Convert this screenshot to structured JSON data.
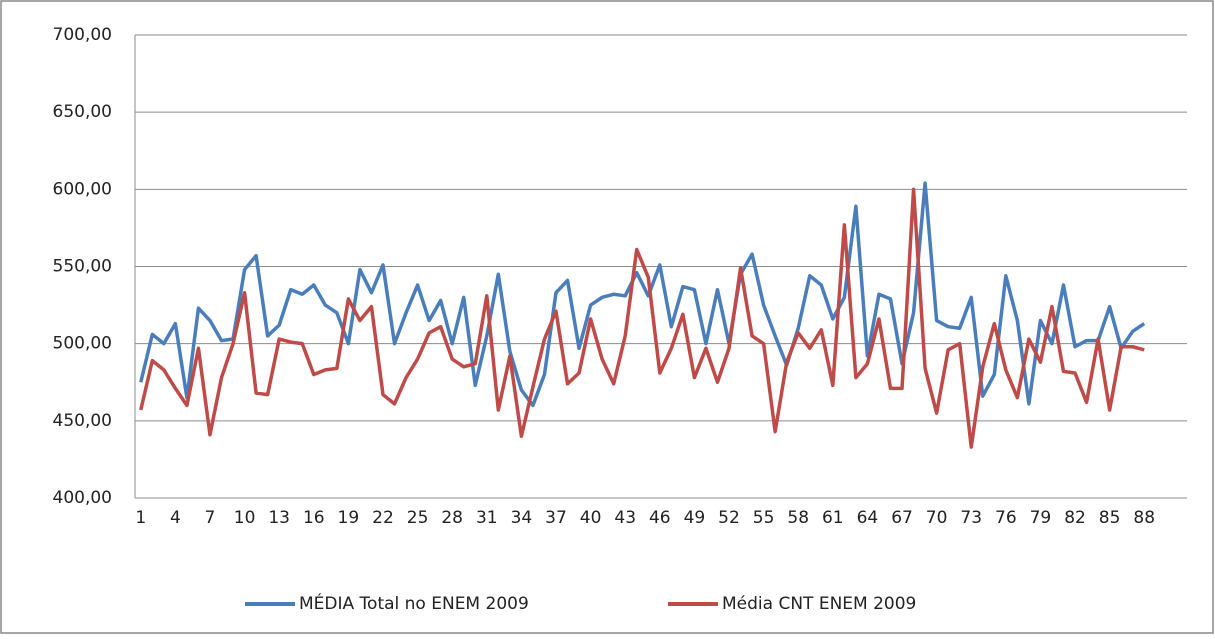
{
  "chart_data": {
    "type": "line",
    "categories": [
      1,
      null,
      null,
      4,
      null,
      null,
      7,
      null,
      null,
      10,
      null,
      null,
      13,
      null,
      null,
      16,
      null,
      null,
      19,
      null,
      null,
      22,
      null,
      null,
      25,
      null,
      null,
      28,
      null,
      null,
      31,
      null,
      null,
      34,
      null,
      null,
      37,
      null,
      null,
      40,
      null,
      null,
      43,
      null,
      null,
      46,
      null,
      null,
      49,
      null,
      null,
      52,
      null,
      null,
      55,
      null,
      null,
      58,
      null,
      null,
      61,
      null,
      null,
      64,
      null,
      null,
      67,
      null,
      null,
      70,
      null,
      null,
      73,
      null,
      null,
      76,
      null,
      null,
      79,
      null,
      null,
      82,
      null,
      null,
      85,
      null,
      null,
      88
    ],
    "series": [
      {
        "name": "MÉDIA Total no ENEM 2009",
        "color": "#4a7ebb",
        "values": [
          475,
          506,
          500,
          513,
          465,
          523,
          515,
          502,
          503,
          548,
          557,
          505,
          512,
          535,
          532,
          538,
          525,
          520,
          500,
          548,
          533,
          551,
          500,
          520,
          538,
          515,
          528,
          500,
          530,
          473,
          505,
          545,
          495,
          470,
          460,
          480,
          533,
          541,
          497,
          525,
          530,
          532,
          531,
          546,
          531,
          551,
          511,
          537,
          535,
          500,
          535,
          500,
          545,
          558,
          525,
          505,
          486,
          510,
          544,
          538,
          516,
          530,
          589,
          492,
          532,
          529,
          487,
          520,
          604,
          515,
          511,
          510,
          530,
          466,
          480,
          544,
          515,
          461,
          515,
          500,
          538,
          498,
          502,
          502,
          524,
          497,
          508,
          513
        ]
      },
      {
        "name": "Média CNT ENEM 2009",
        "color": "#be4b48",
        "values": [
          457,
          489,
          483,
          471,
          460,
          497,
          441,
          478,
          500,
          533,
          468,
          467,
          503,
          501,
          500,
          480,
          483,
          484,
          529,
          515,
          524,
          467,
          461,
          478,
          490,
          507,
          511,
          490,
          485,
          487,
          531,
          457,
          492,
          440,
          472,
          503,
          521,
          474,
          481,
          516,
          490,
          474,
          505,
          561,
          543,
          481,
          497,
          519,
          478,
          497,
          475,
          497,
          549,
          505,
          500,
          443,
          488,
          507,
          497,
          509,
          473,
          577,
          478,
          487,
          516,
          471,
          471,
          600,
          484,
          455,
          496,
          500,
          433,
          485,
          513,
          483,
          465,
          503,
          488,
          524,
          482,
          481,
          462,
          503,
          457,
          498,
          498,
          496
        ]
      }
    ],
    "ylim": [
      400,
      700
    ],
    "yticks": [
      {
        "value": 400,
        "label": "400,00"
      },
      {
        "value": 450,
        "label": "450,00"
      },
      {
        "value": 500,
        "label": "500,00"
      },
      {
        "value": 550,
        "label": "550,00"
      },
      {
        "value": 600,
        "label": "600,00"
      },
      {
        "value": 650,
        "label": "650,00"
      },
      {
        "value": 700,
        "label": "700,00"
      }
    ],
    "grid": true
  }
}
